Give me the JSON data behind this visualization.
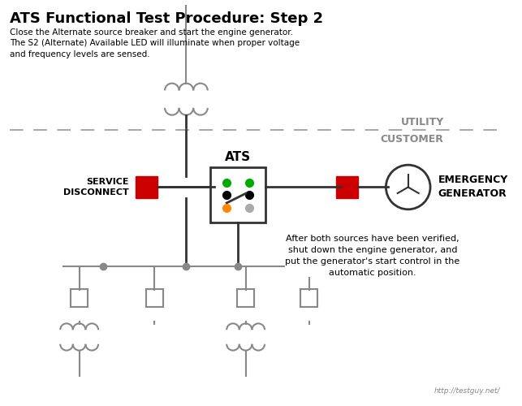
{
  "title": "ATS Functional Test Procedure: Step 2",
  "subtitle": "Close the Alternate source breaker and start the engine generator.\nThe S2 (Alternate) Available LED will illuminate when proper voltage\nand frequency levels are sensed.",
  "utility_label": "UTILITY",
  "customer_label": "CUSTOMER",
  "service_disconnect_label": "SERVICE\nDISCONNECT",
  "ats_label": "ATS",
  "emergency_gen_label": "EMERGENCY\nGENERATOR",
  "note_text": "After both sources have been verified,\nshut down the engine generator, and\nput the generator's start control in the\nautomatic position.",
  "footer": "http://testguy.net/",
  "bg_color": "#ffffff",
  "line_color": "#888888",
  "dark_line_color": "#333333",
  "red_color": "#cc0000",
  "green_color": "#00aa00",
  "orange_color": "#ff8800",
  "dashed_line_color": "#aaaaaa"
}
